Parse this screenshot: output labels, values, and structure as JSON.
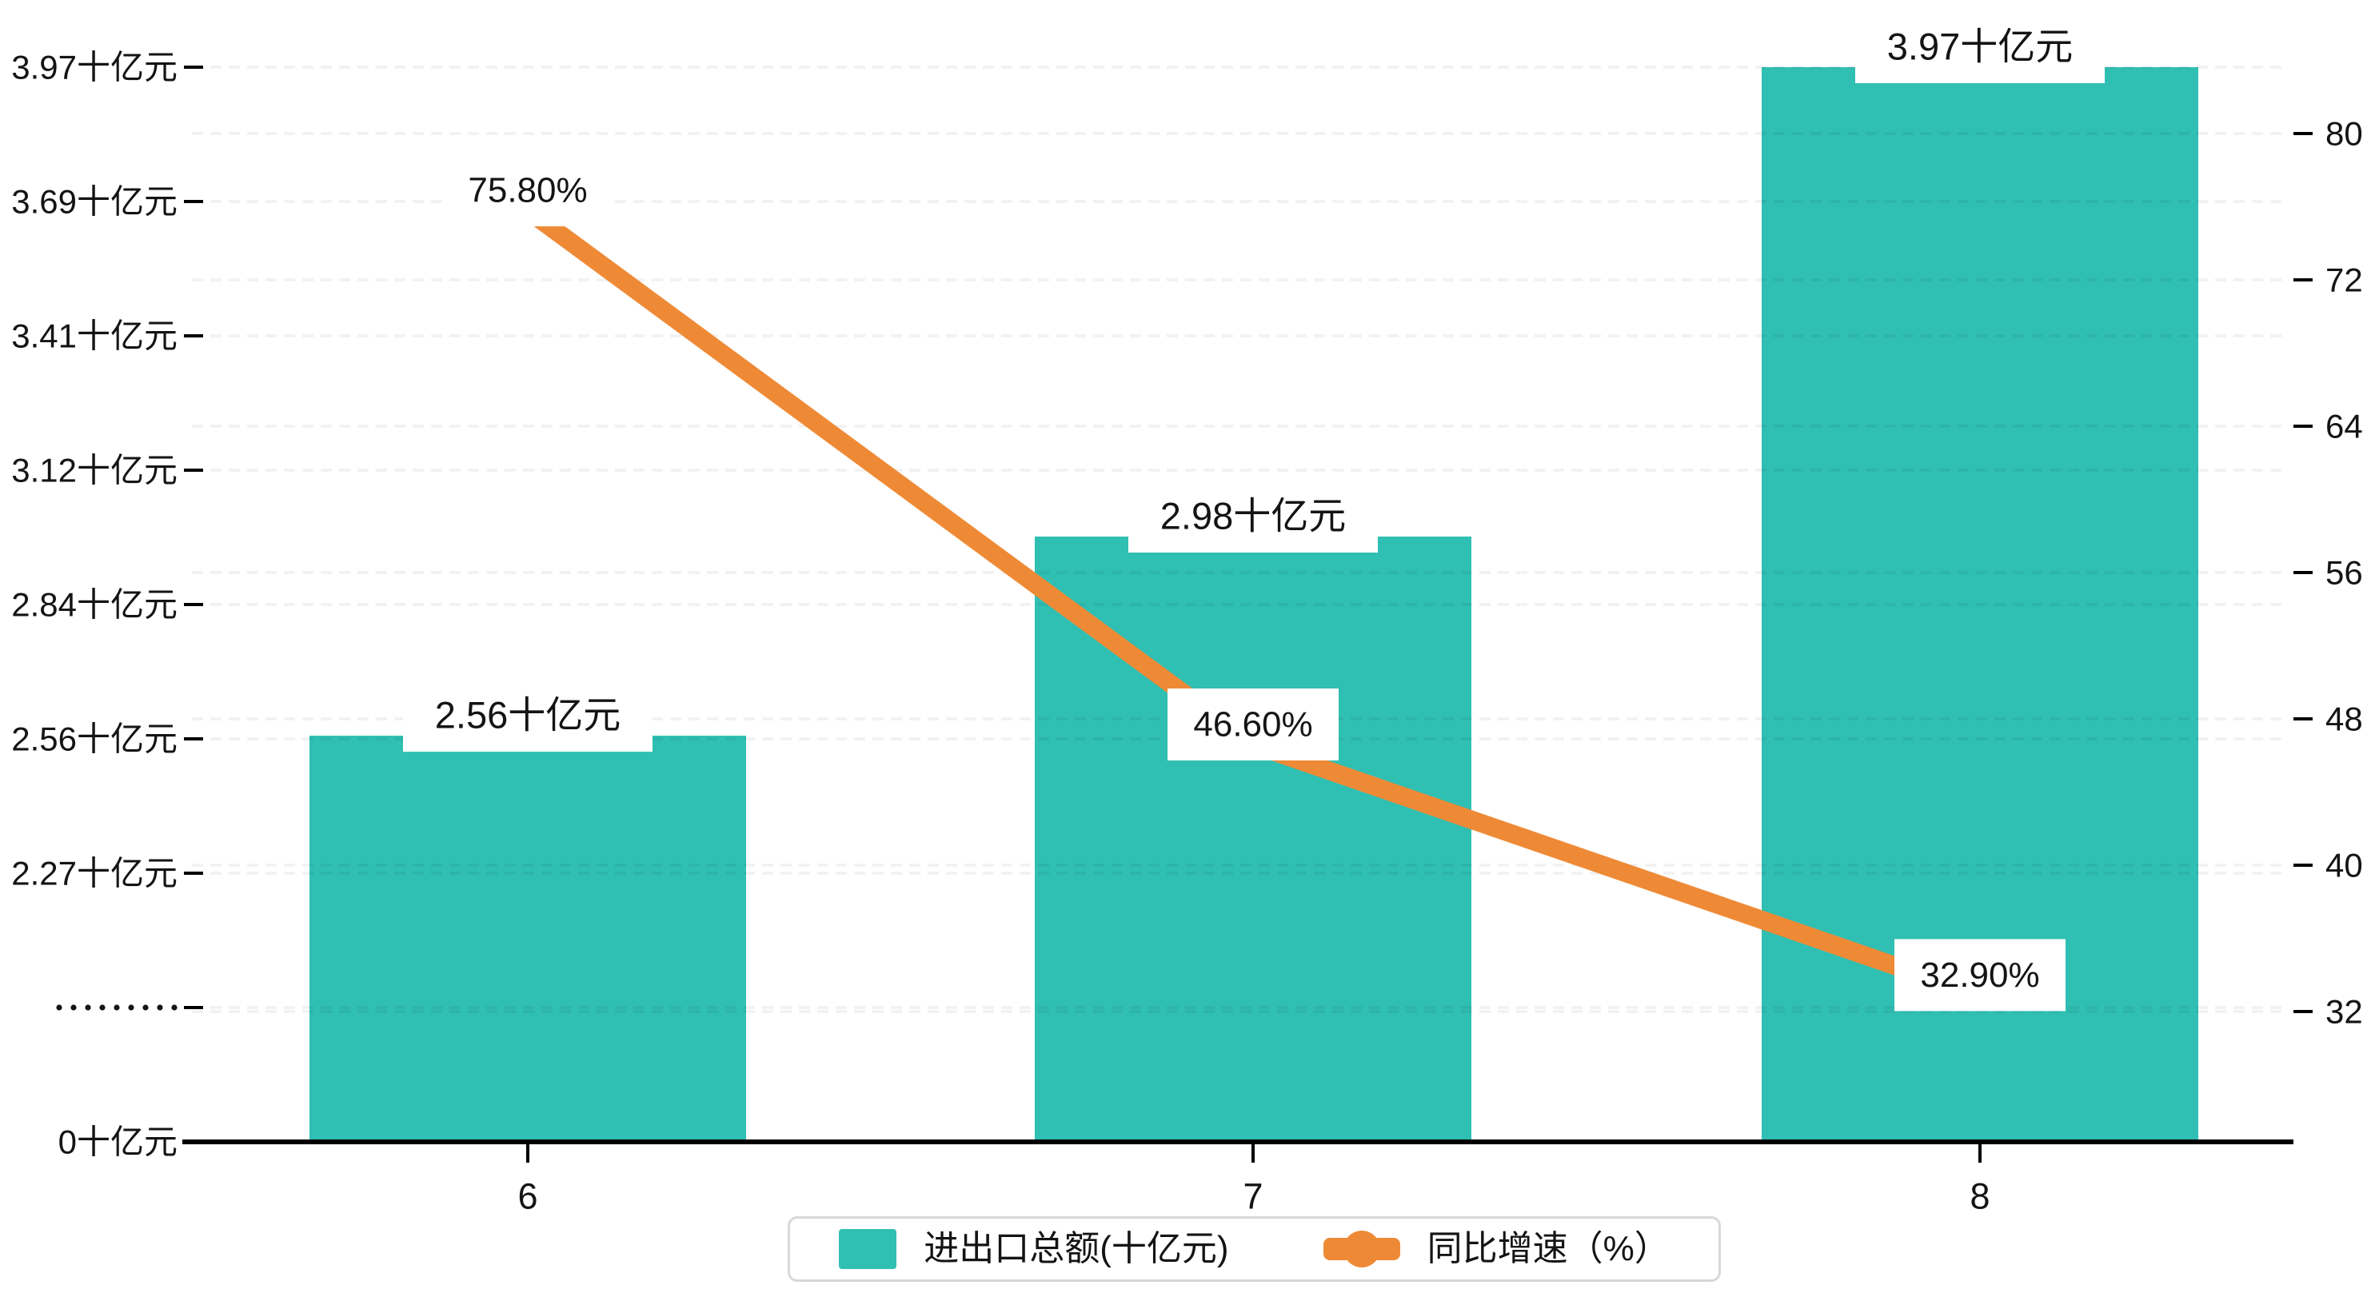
{
  "colors": {
    "bar": "#30BFB3",
    "line": "#EE8A36",
    "grid": "rgba(0,0,0,0.055)",
    "axis": "#000000",
    "text": "#141414",
    "label_box": "#ffffff",
    "legend_border": "#d8d8d8"
  },
  "chart_data": {
    "type": "bar+line combo",
    "categories": [
      "6",
      "7",
      "8"
    ],
    "series": [
      {
        "name": "进出口总额(十亿元)",
        "type": "bar",
        "values": [
          2.56,
          2.98,
          3.97
        ],
        "unit": "十亿元",
        "data_labels": [
          "2.56十亿元",
          "2.98十亿元",
          "3.97十亿元"
        ],
        "axis": "left"
      },
      {
        "name": "同比增速（%）",
        "type": "line",
        "values": [
          75.8,
          46.6,
          32.9
        ],
        "unit": "%",
        "data_labels": [
          "75.80%",
          "46.60%",
          "32.90%"
        ],
        "axis": "right"
      }
    ],
    "left_axis": {
      "tick_labels": [
        "0十亿元",
        "·········",
        "2.27十亿元",
        "2.56十亿元",
        "2.84十亿元",
        "3.12十亿元",
        "3.41十亿元",
        "3.69十亿元",
        "3.97十亿元"
      ],
      "tick_values": [
        0,
        null,
        2.27,
        2.56,
        2.84,
        3.12,
        3.41,
        3.69,
        3.97
      ],
      "has_break": true,
      "break_index": 1
    },
    "right_axis": {
      "tick_labels": [
        "32",
        "40",
        "48",
        "56",
        "64",
        "72",
        "80"
      ],
      "tick_values": [
        32,
        40,
        48,
        56,
        64,
        72,
        80
      ],
      "range": [
        32,
        80
      ]
    },
    "x_axis": {
      "tick_labels": [
        "6",
        "7",
        "8"
      ]
    },
    "grid": "dashed",
    "legend_position": "bottom-center",
    "legend": [
      {
        "label": "进出口总额(十亿元)",
        "marker": "bar"
      },
      {
        "label": "同比增速（%）",
        "marker": "line-dot"
      }
    ]
  }
}
